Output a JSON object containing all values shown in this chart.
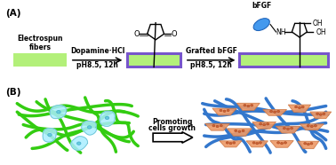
{
  "bg_color": "#ffffff",
  "label_A": "(A)",
  "label_B": "(B)",
  "electrospun_text": "Electrospun\nfibers",
  "arrow1_text1": "Dopamine·HCl",
  "arrow1_text2": "pH8.5, 12h",
  "arrow2_text1": "Grafted bFGF",
  "arrow2_text2": "pH8.5, 12h",
  "bfgf_label": "bFGF",
  "promoting_text1": "Promoting",
  "promoting_text2": "cells growth",
  "fiber_fill": "#b3f07a",
  "fiber_border_color": "#7755cc",
  "green_fiber_color": "#33cc11",
  "blue_fiber_color": "#3377cc",
  "cell_color_cyan": "#aaeeff",
  "cell_color_orange": "#ee9966",
  "bfgf_protein_color": "#4499ee",
  "label_fontsize": 7.5,
  "text_fontsize": 6.0
}
